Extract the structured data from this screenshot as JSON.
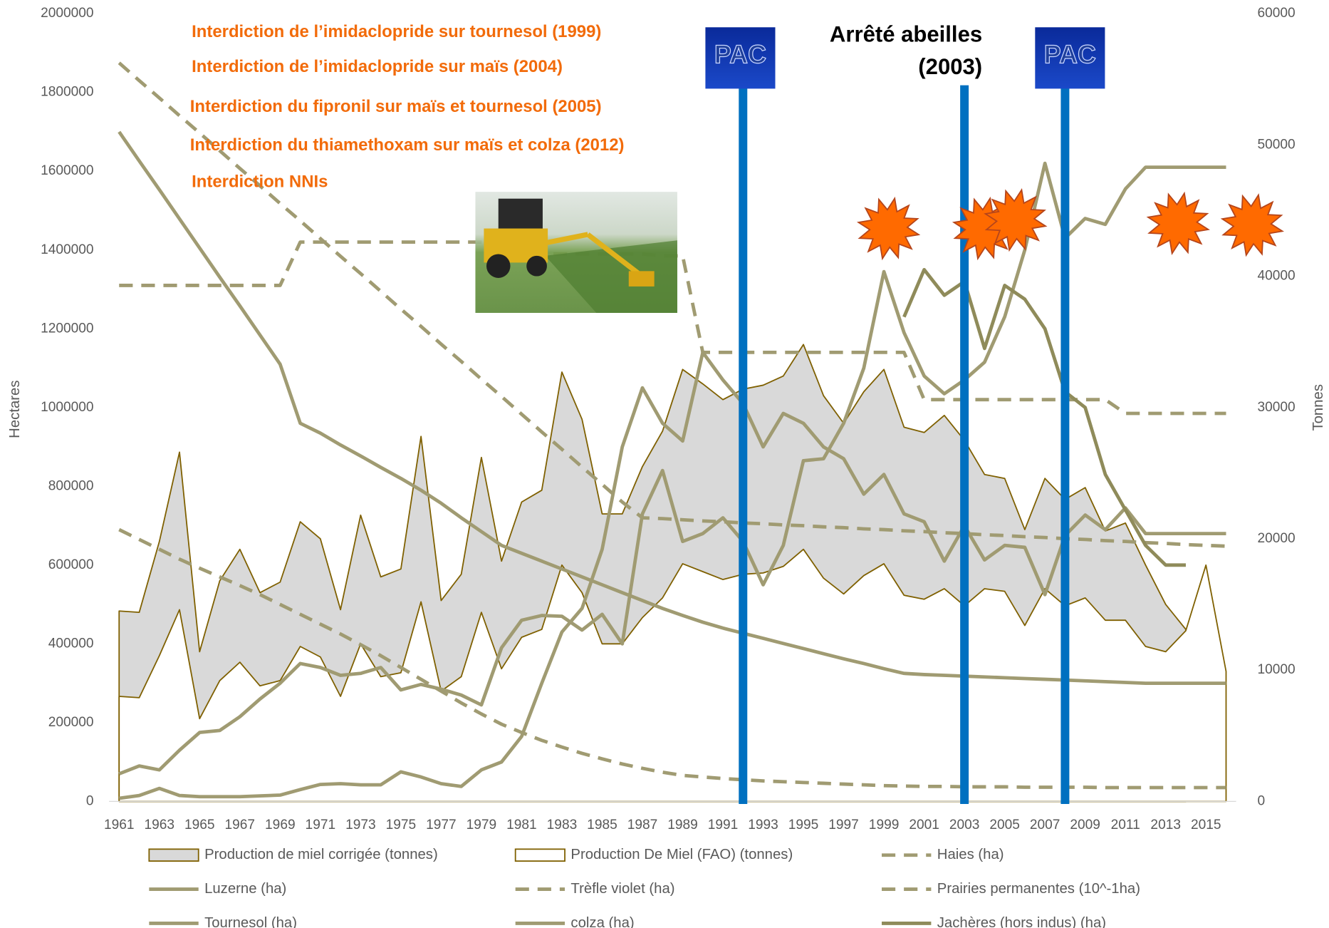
{
  "chart_data": {
    "type": "line",
    "y_axis_label": "Hectares",
    "y2_axis_label": "Tonnes",
    "xlim": [
      1960.5,
      2016.5
    ],
    "xticks": [
      1961,
      1963,
      1965,
      1967,
      1969,
      1971,
      1973,
      1975,
      1977,
      1979,
      1981,
      1983,
      1985,
      1987,
      1989,
      1991,
      1993,
      1995,
      1997,
      1999,
      2001,
      2003,
      2005,
      2007,
      2009,
      2011,
      2013,
      2015
    ],
    "ylim": [
      0,
      2000000
    ],
    "yticks": [
      0,
      200000,
      400000,
      600000,
      800000,
      1000000,
      1200000,
      1400000,
      1600000,
      1800000,
      2000000
    ],
    "y2lim": [
      0,
      60000
    ],
    "y2ticks": [
      0,
      10000,
      20000,
      30000,
      40000,
      50000,
      60000
    ],
    "grid": false,
    "legend": "bottom",
    "x": [
      1961,
      1962,
      1963,
      1964,
      1965,
      1966,
      1967,
      1968,
      1969,
      1970,
      1971,
      1972,
      1973,
      1974,
      1975,
      1976,
      1977,
      1978,
      1979,
      1980,
      1981,
      1982,
      1983,
      1984,
      1985,
      1986,
      1987,
      1988,
      1989,
      1990,
      1991,
      1992,
      1993,
      1994,
      1995,
      1996,
      1997,
      1998,
      1999,
      2000,
      2001,
      2002,
      2003,
      2004,
      2005,
      2006,
      2007,
      2008,
      2009,
      2010,
      2011,
      2012,
      2013,
      2014,
      2015,
      2016
    ],
    "series": [
      {
        "name": "Production de miel corrigée (tonnes)",
        "type": "area",
        "axis": "y2",
        "color": "#d9d9d9",
        "line_color": "#7f6000",
        "values": [
          14500,
          14400,
          19800,
          26600,
          11400,
          16800,
          19200,
          15900,
          16700,
          21300,
          20000,
          14600,
          21800,
          17100,
          17700,
          27800,
          15300,
          17300,
          26200,
          18300,
          22800,
          23700,
          32700,
          29100,
          21900,
          21900,
          25500,
          28200,
          32900,
          31800,
          30600,
          31400,
          31700,
          32400,
          34800,
          30900,
          28800,
          31200,
          32900,
          28500,
          28100,
          29400,
          27500,
          24900,
          24600,
          20700,
          24600,
          23000,
          23900,
          20600,
          21200,
          18000,
          15000,
          13100,
          null,
          null
        ]
      },
      {
        "name": "Production De Miel (FAO) (tonnes)",
        "type": "area",
        "axis": "y2",
        "color": "#ffffff",
        "line_color": "#7f6000",
        "values": [
          8000,
          7900,
          11100,
          14600,
          6300,
          9200,
          10600,
          8800,
          9200,
          11800,
          11000,
          8000,
          12000,
          9500,
          9800,
          15200,
          8400,
          9500,
          14400,
          10100,
          12500,
          13100,
          18000,
          15900,
          12000,
          12000,
          14000,
          15500,
          18100,
          17500,
          16900,
          17300,
          17400,
          17900,
          19200,
          17000,
          15800,
          17200,
          18100,
          15700,
          15400,
          16200,
          14900,
          16200,
          16000,
          13400,
          16200,
          14900,
          15500,
          13800,
          13800,
          11800,
          11400,
          13000,
          18000,
          9900
        ]
      },
      {
        "name": "Haies (ha)",
        "type": "line",
        "dashed": true,
        "color": "#a09b72",
        "values": [
          1875000,
          1830000,
          1786000,
          1741000,
          1697000,
          1652000,
          1607000,
          1563000,
          1518000,
          1474000,
          1429000,
          1384000,
          1340000,
          1295000,
          1250000,
          1206000,
          1161000,
          1117000,
          1072000,
          1028000,
          983000,
          938000,
          894000,
          849000,
          805000,
          760000,
          720000,
          718000,
          715000,
          712000,
          710000,
          707000,
          705000,
          702000,
          700000,
          697000,
          695000,
          692000,
          690000,
          687000,
          685000,
          682000,
          680000,
          677000,
          675000,
          672000,
          670000,
          667000,
          665000,
          662000,
          660000,
          657000,
          655000,
          652000,
          650000,
          648000
        ]
      },
      {
        "name": "Luzerne (ha)",
        "type": "line",
        "dashed": false,
        "color": "#a09b72",
        "values": [
          1700000,
          1626000,
          1553000,
          1479000,
          1405000,
          1331000,
          1258000,
          1184000,
          1110000,
          960000,
          935000,
          905000,
          877000,
          848000,
          820000,
          790000,
          757000,
          720000,
          685000,
          650000,
          630000,
          610000,
          590000,
          570000,
          550000,
          530000,
          510000,
          490000,
          472000,
          455000,
          440000,
          427000,
          414000,
          401000,
          388000,
          375000,
          362000,
          350000,
          337000,
          325000,
          322000,
          320000,
          318000,
          316000,
          314000,
          312000,
          310000,
          308000,
          306000,
          304000,
          302000,
          300000,
          300000,
          300000,
          300000,
          300000
        ]
      },
      {
        "name": "Trèfle violet (ha)",
        "type": "line",
        "dashed": true,
        "color": "#a09b72",
        "values": [
          690000,
          665000,
          640000,
          615000,
          592000,
          570000,
          548000,
          525000,
          500000,
          475000,
          450000,
          425000,
          398000,
          370000,
          340000,
          310000,
          280000,
          250000,
          222000,
          196000,
          175000,
          155000,
          138000,
          122000,
          108000,
          95000,
          84000,
          74000,
          66000,
          62000,
          58000,
          55000,
          52000,
          50000,
          48000,
          46000,
          44000,
          42000,
          40000,
          39000,
          38000,
          38000,
          37000,
          37000,
          37000,
          36000,
          36000,
          36000,
          36000,
          35000,
          35000,
          35000,
          35000,
          35000,
          35000,
          35000
        ]
      },
      {
        "name": "Prairies permanentes (10^-1ha)",
        "type": "line",
        "dashed": true,
        "color": "#a09b72",
        "values": [
          1310000,
          1310000,
          1310000,
          1310000,
          1310000,
          1310000,
          1310000,
          1310000,
          1310000,
          1420000,
          1420000,
          1420000,
          1420000,
          1420000,
          1420000,
          1420000,
          1420000,
          1420000,
          1420000,
          1420000,
          1390000,
          1390000,
          1390000,
          1390000,
          1390000,
          1390000,
          1390000,
          1385000,
          1385000,
          1140000,
          1140000,
          1140000,
          1140000,
          1140000,
          1140000,
          1140000,
          1140000,
          1140000,
          1140000,
          1140000,
          1020000,
          1020000,
          1020000,
          1020000,
          1020000,
          1020000,
          1020000,
          1020000,
          1020000,
          1020000,
          985000,
          985000,
          985000,
          985000,
          985000,
          985000
        ]
      },
      {
        "name": "Tournesol (ha)",
        "type": "line",
        "dashed": false,
        "color": "#a09b72",
        "values": [
          8000,
          15000,
          33000,
          15000,
          12000,
          12000,
          12000,
          14000,
          16000,
          30000,
          43000,
          45000,
          42000,
          42000,
          75000,
          62000,
          45000,
          38000,
          80000,
          100000,
          165000,
          300000,
          430000,
          490000,
          640000,
          900000,
          1050000,
          960000,
          915000,
          1140000,
          1070000,
          1010000,
          900000,
          985000,
          960000,
          900000,
          870000,
          780000,
          830000,
          730000,
          710000,
          610000,
          700000,
          613000,
          650000,
          645000,
          525000,
          675000,
          727000,
          690000,
          745000,
          680000,
          680000,
          680000,
          680000,
          680000
        ]
      },
      {
        "name": "colza (ha)",
        "type": "line",
        "dashed": false,
        "color": "#a09b72",
        "values": [
          70000,
          90000,
          80000,
          130000,
          175000,
          180000,
          215000,
          260000,
          300000,
          350000,
          340000,
          320000,
          325000,
          340000,
          283000,
          297000,
          285000,
          270000,
          245000,
          390000,
          460000,
          472000,
          470000,
          435000,
          475000,
          400000,
          730000,
          840000,
          660000,
          680000,
          720000,
          660000,
          550000,
          650000,
          865000,
          870000,
          960000,
          1100000,
          1345000,
          1190000,
          1080000,
          1035000,
          1070000,
          1115000,
          1230000,
          1400000,
          1620000,
          1430000,
          1480000,
          1465000,
          1555000,
          1610000,
          1610000,
          1610000,
          1610000,
          1610000
        ]
      },
      {
        "name": "Jachères (hors indus) (ha)",
        "type": "line",
        "dashed": false,
        "color": "#8f8b5a",
        "values": [
          null,
          null,
          null,
          null,
          null,
          null,
          null,
          null,
          null,
          null,
          null,
          null,
          null,
          null,
          null,
          null,
          null,
          null,
          null,
          null,
          null,
          null,
          null,
          null,
          null,
          null,
          null,
          null,
          null,
          null,
          null,
          null,
          null,
          null,
          null,
          null,
          null,
          null,
          null,
          1230000,
          1350000,
          1285000,
          1320000,
          1150000,
          1310000,
          1275000,
          1200000,
          1040000,
          1000000,
          830000,
          740000,
          650000,
          600000,
          600000,
          null,
          null
        ]
      }
    ],
    "vlines": {
      "x": [
        1992,
        2003,
        2008
      ],
      "color": "#0070c0"
    },
    "pac_labels": [
      "PAC",
      "PAC"
    ],
    "annotations": [
      "Interdiction de l’imidaclopride sur tournesol (1999)",
      "Interdiction de l’imidaclopride sur maïs (2004)",
      "Interdiction du fipronil sur maïs et tournesol (2005)",
      "Interdiction du thiamethoxam sur maïs et colza (2012)",
      "Interdiction NNIs"
    ],
    "annotation_black": [
      "Arrêté abeilles",
      "(2003)"
    ]
  }
}
